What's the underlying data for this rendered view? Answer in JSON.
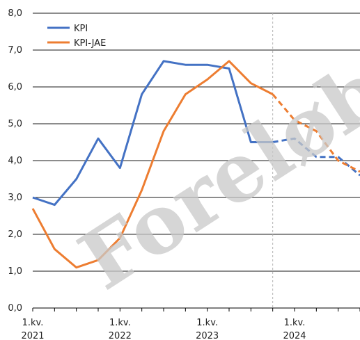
{
  "chart_data": {
    "type": "line",
    "title": "",
    "xlabel": "",
    "ylabel": "",
    "ylim": [
      0,
      8
    ],
    "yticks": [
      "0,0",
      "1,0",
      "2,0",
      "3,0",
      "4,0",
      "5,0",
      "6,0",
      "7,0",
      "8,0"
    ],
    "x_periods": [
      "2021K1",
      "2021K2",
      "2021K3",
      "2021K4",
      "2022K1",
      "2022K2",
      "2022K3",
      "2022K4",
      "2023K1",
      "2023K2",
      "2023K3",
      "2023K4",
      "2024K1",
      "2024K2",
      "2024K3",
      "2024K4"
    ],
    "x_labels": [
      {
        "index": 0,
        "line1": "1.kv.",
        "line2": "2021"
      },
      {
        "index": 4,
        "line1": "1.kv.",
        "line2": "2022"
      },
      {
        "index": 8,
        "line1": "1.kv.",
        "line2": "2023"
      },
      {
        "index": 12,
        "line1": "1.kv.",
        "line2": "2024"
      }
    ],
    "forecast_start_index": 11,
    "grid": true,
    "legend_position": "top-left",
    "series": [
      {
        "name": "KPI",
        "color": "#4472c4",
        "values": [
          3.0,
          2.8,
          3.5,
          4.6,
          3.8,
          5.8,
          6.7,
          6.6,
          6.6,
          6.5,
          4.5,
          4.5,
          4.6,
          4.1,
          4.1,
          3.6
        ],
        "last_actual_index": 11
      },
      {
        "name": "KPI-JAE",
        "color": "#ed7d31",
        "values": [
          2.7,
          1.6,
          1.1,
          1.3,
          1.9,
          3.2,
          4.8,
          5.8,
          6.2,
          6.7,
          6.1,
          5.8,
          5.1,
          4.8,
          4.0,
          3.7
        ],
        "last_actual_index": 11
      }
    ],
    "watermark": "Foreløbig"
  }
}
